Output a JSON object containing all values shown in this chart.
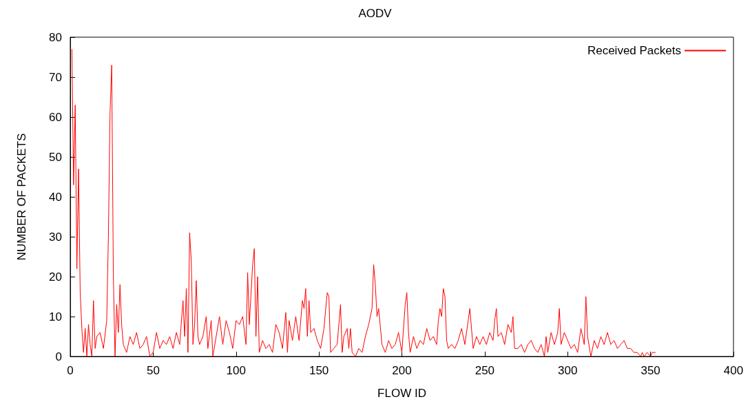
{
  "chart_data": {
    "type": "line",
    "title": "AODV",
    "xlabel": "FLOW ID",
    "ylabel": "NUMBER OF PACKETS",
    "xlim": [
      0,
      400
    ],
    "xticks": [
      0,
      50,
      100,
      150,
      200,
      250,
      300,
      350,
      400
    ],
    "ylim": [
      0,
      80
    ],
    "yticks": [
      0,
      10,
      20,
      30,
      40,
      50,
      60,
      70,
      80
    ],
    "grid": false,
    "legend": "top right",
    "marker": "none",
    "line_style": "solid",
    "series": [
      {
        "name": "Received Packets",
        "color": "#ff0000",
        "x": [
          1,
          2,
          3,
          4,
          5,
          6,
          7,
          8,
          9,
          10,
          11,
          12,
          13,
          14,
          15,
          16,
          18,
          20,
          22,
          23,
          24,
          25,
          26,
          27,
          28,
          29,
          30,
          31,
          32,
          34,
          36,
          38,
          40,
          42,
          44,
          46,
          48,
          50,
          52,
          54,
          56,
          58,
          60,
          62,
          64,
          66,
          68,
          69,
          70,
          71,
          72,
          73,
          74,
          75,
          76,
          77,
          78,
          80,
          82,
          83,
          85,
          86,
          88,
          90,
          92,
          94,
          96,
          98,
          100,
          102,
          104,
          106,
          107,
          108,
          110,
          111,
          112,
          113,
          114,
          116,
          118,
          120,
          122,
          124,
          126,
          128,
          130,
          131,
          132,
          134,
          136,
          138,
          140,
          141,
          142,
          143,
          144,
          145,
          147,
          149,
          151,
          153,
          155,
          156,
          157,
          159,
          161,
          163,
          164,
          165,
          167,
          168,
          169,
          170,
          172,
          174,
          176,
          178,
          180,
          182,
          183,
          184,
          185,
          186,
          188,
          190,
          192,
          194,
          196,
          198,
          200,
          202,
          203,
          204,
          205,
          207,
          209,
          211,
          213,
          215,
          217,
          219,
          221,
          222,
          223,
          224,
          225,
          226,
          227,
          228,
          230,
          232,
          234,
          236,
          238,
          240,
          241,
          243,
          245,
          247,
          249,
          251,
          253,
          255,
          256,
          257,
          258,
          260,
          262,
          264,
          266,
          267,
          268,
          270,
          272,
          274,
          276,
          278,
          280,
          282,
          284,
          286,
          287,
          288,
          290,
          292,
          294,
          295,
          296,
          298,
          300,
          302,
          304,
          306,
          308,
          310,
          311,
          312,
          314,
          316,
          318,
          320,
          322,
          324,
          326,
          328,
          330,
          332,
          334,
          336,
          338,
          340,
          342,
          344,
          345,
          346,
          348,
          350,
          351,
          353
        ],
        "values": [
          77,
          43,
          63,
          22,
          47,
          16,
          7,
          1,
          7,
          0,
          8,
          3,
          0,
          14,
          2,
          5,
          6,
          2,
          9,
          30,
          61,
          73,
          20,
          0,
          13,
          6,
          18,
          8,
          3,
          1,
          5,
          3,
          6,
          2,
          3,
          5,
          0,
          1,
          6,
          2,
          4,
          3,
          5,
          2,
          6,
          3,
          14,
          5,
          17,
          1,
          31,
          24,
          3,
          8,
          19,
          5,
          3,
          5,
          10,
          2,
          9,
          0,
          5,
          10,
          3,
          9,
          6,
          2,
          9,
          8,
          10,
          3,
          21,
          8,
          23,
          27,
          5,
          20,
          1,
          4,
          2,
          3,
          1,
          8,
          6,
          2,
          11,
          1,
          9,
          4,
          10,
          4,
          14,
          12,
          17,
          5,
          14,
          6,
          7,
          4,
          2,
          7,
          16,
          15,
          1,
          2,
          3,
          13,
          1,
          5,
          7,
          2,
          7,
          1,
          0,
          2,
          1,
          5,
          8,
          12,
          23,
          18,
          10,
          12,
          3,
          1,
          4,
          2,
          3,
          6,
          1,
          13,
          16,
          6,
          1,
          5,
          2,
          4,
          3,
          7,
          4,
          5,
          3,
          9,
          12,
          10,
          17,
          15,
          4,
          2,
          3,
          2,
          4,
          7,
          3,
          9,
          12,
          2,
          5,
          3,
          5,
          3,
          6,
          4,
          9,
          12,
          5,
          6,
          3,
          8,
          6,
          10,
          2,
          2,
          3,
          1,
          3,
          4,
          2,
          1,
          3,
          0,
          5,
          1,
          6,
          3,
          6,
          12,
          3,
          6,
          4,
          2,
          3,
          1,
          7,
          3,
          15,
          5,
          0,
          4,
          2,
          5,
          3,
          6,
          3,
          4,
          2,
          3,
          4,
          2,
          2,
          1,
          1,
          0,
          1,
          0,
          1,
          0,
          1,
          1
        ]
      }
    ]
  }
}
